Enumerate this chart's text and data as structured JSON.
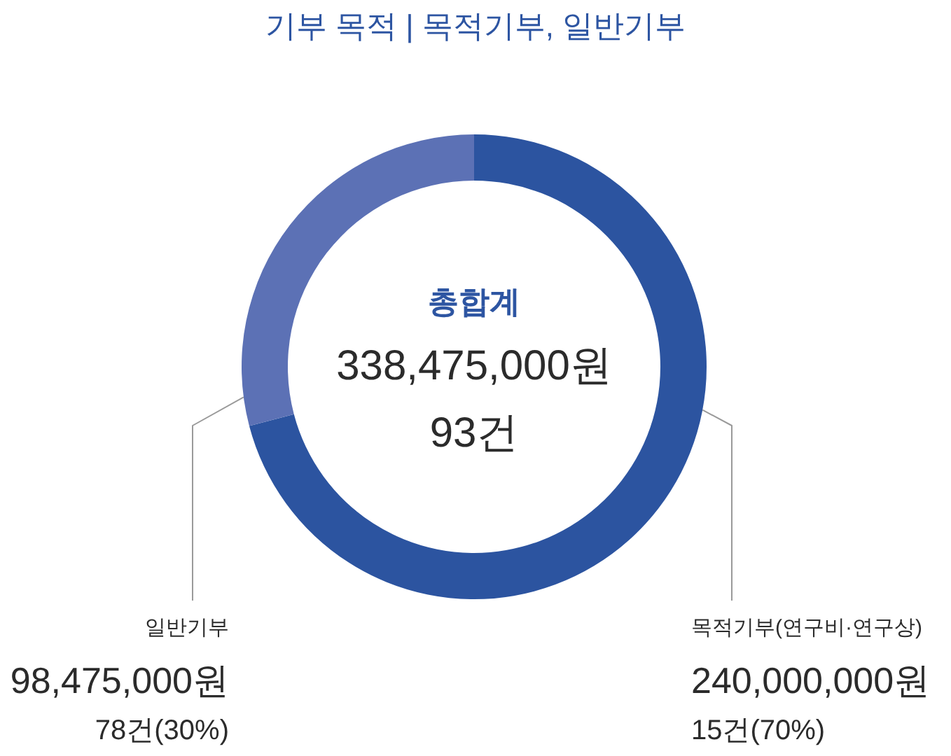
{
  "chart_data": {
    "type": "donut",
    "title": "기부 목적 | 목적기부, 일반기부",
    "categories": [
      "목적기부(연구비·연구상)",
      "일반기부"
    ],
    "values": [
      240000000,
      98475000
    ],
    "colors": [
      "#2c54a0",
      "#5c71b5"
    ],
    "value_labels": [
      "240,000,000원",
      "98,475,000원"
    ],
    "annotations": [
      "총합계",
      "338,475,000원",
      "93건",
      "15건(70%)",
      "78건(30%)"
    ]
  }
}
